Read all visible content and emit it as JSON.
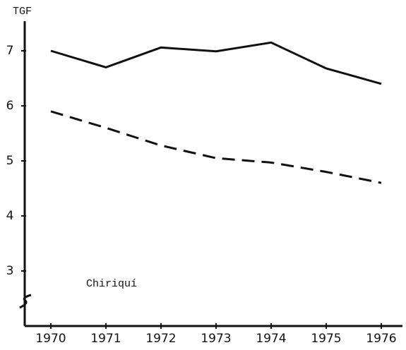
{
  "chart_data": {
    "type": "line",
    "y_label": "TGF",
    "annotation": "Chiriquí",
    "categories": [
      "1970",
      "1971",
      "1972",
      "1973",
      "1974",
      "1975",
      "1976"
    ],
    "series": [
      {
        "color": "#111111",
        "style": "solid",
        "values": [
          7.0,
          6.7,
          7.06,
          6.99,
          7.15,
          6.68,
          6.4
        ]
      },
      {
        "color": "#111111",
        "style": "dashed",
        "values": [
          5.9,
          5.6,
          5.28,
          5.05,
          4.97,
          4.8,
          4.6
        ]
      }
    ],
    "ylim": [
      2,
      7.5
    ],
    "yticks": [
      3,
      4,
      5,
      6,
      7
    ],
    "grid": false
  }
}
